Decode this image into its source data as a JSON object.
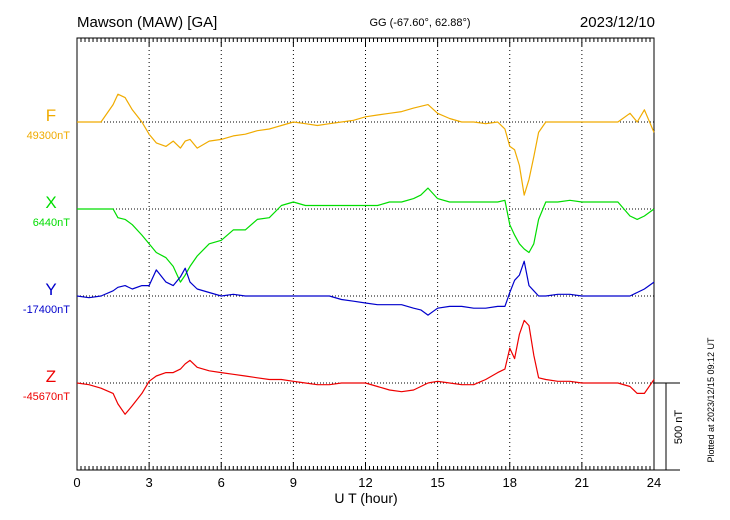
{
  "chart_data": {
    "type": "line",
    "station": "Mawson (MAW)  [GA]",
    "coords": "GG (-67.60°,  62.88°)",
    "date": "2023/12/10",
    "xlabel": "U T (hour)",
    "xlim": [
      0,
      24
    ],
    "xticks": [
      "0",
      "3",
      "6",
      "9",
      "12",
      "15",
      "18",
      "21",
      "24"
    ],
    "ylim": [
      -2450,
      600
    ],
    "grid": true,
    "scale_label": "500 nT",
    "scale_nT": 500,
    "plotted_note": "Plotted at 2023/12/15 09:12 UT",
    "x": [
      0,
      0.5,
      1,
      1.5,
      1.7,
      2,
      2.3,
      2.7,
      3,
      3.3,
      3.7,
      4,
      4.3,
      4.5,
      4.7,
      5,
      5.5,
      6,
      6.5,
      7,
      7.5,
      8,
      8.5,
      9,
      9.5,
      10,
      10.5,
      11,
      11.5,
      12,
      12.5,
      13,
      13.5,
      14,
      14.3,
      14.6,
      15,
      15.5,
      16,
      16.5,
      17,
      17.5,
      17.8,
      18,
      18.2,
      18.4,
      18.6,
      18.8,
      19,
      19.2,
      19.5,
      20,
      20.5,
      21,
      21.5,
      22,
      22.5,
      23,
      23.3,
      23.6,
      24
    ],
    "series": [
      {
        "name": "F",
        "baseline_label": "49300nT",
        "color": "#f0ab00",
        "values": [
          0,
          0,
          0,
          100,
          160,
          140,
          70,
          0,
          -70,
          -120,
          -140,
          -110,
          -150,
          -110,
          -100,
          -150,
          -110,
          -100,
          -80,
          -70,
          -50,
          -40,
          -20,
          0,
          -10,
          -20,
          -10,
          0,
          10,
          30,
          40,
          50,
          60,
          80,
          90,
          100,
          50,
          20,
          0,
          0,
          -10,
          0,
          -40,
          -140,
          -160,
          -250,
          -420,
          -330,
          -200,
          -60,
          0,
          0,
          0,
          0,
          0,
          0,
          0,
          50,
          0,
          70,
          -60
        ]
      },
      {
        "name": "X",
        "baseline_label": "6440nT",
        "color": "#00dd00",
        "values": [
          0,
          0,
          0,
          0,
          -50,
          -60,
          -90,
          -150,
          -200,
          -250,
          -280,
          -330,
          -420,
          -380,
          -330,
          -270,
          -200,
          -180,
          -120,
          -120,
          -60,
          -50,
          20,
          40,
          20,
          20,
          20,
          20,
          20,
          20,
          20,
          40,
          40,
          60,
          80,
          120,
          60,
          40,
          40,
          40,
          40,
          40,
          50,
          -90,
          -150,
          -200,
          -230,
          -250,
          -200,
          -60,
          40,
          40,
          50,
          40,
          40,
          40,
          40,
          -40,
          -60,
          -40,
          0
        ]
      },
      {
        "name": "Y",
        "baseline_label": "-17400nT",
        "color": "#0000cc",
        "values": [
          0,
          -10,
          0,
          30,
          50,
          60,
          40,
          60,
          60,
          150,
          80,
          60,
          110,
          160,
          80,
          40,
          20,
          0,
          10,
          0,
          0,
          0,
          0,
          0,
          0,
          0,
          0,
          -20,
          -30,
          -40,
          -50,
          -50,
          -50,
          -70,
          -80,
          -110,
          -70,
          -60,
          -60,
          -70,
          -70,
          -60,
          -60,
          20,
          90,
          120,
          200,
          60,
          30,
          0,
          0,
          10,
          10,
          0,
          0,
          0,
          0,
          0,
          20,
          40,
          80
        ]
      },
      {
        "name": "Z",
        "baseline_label": "-45670nT",
        "color": "#ee0000",
        "values": [
          0,
          -10,
          -30,
          -60,
          -120,
          -180,
          -130,
          -60,
          10,
          40,
          60,
          60,
          80,
          110,
          130,
          90,
          70,
          60,
          50,
          40,
          30,
          20,
          20,
          10,
          0,
          -10,
          -10,
          0,
          0,
          0,
          -20,
          -40,
          -50,
          -40,
          -20,
          0,
          10,
          0,
          -10,
          -10,
          20,
          60,
          80,
          200,
          140,
          280,
          360,
          330,
          160,
          30,
          20,
          10,
          10,
          0,
          0,
          0,
          0,
          -20,
          -60,
          -60,
          20
        ]
      }
    ]
  }
}
